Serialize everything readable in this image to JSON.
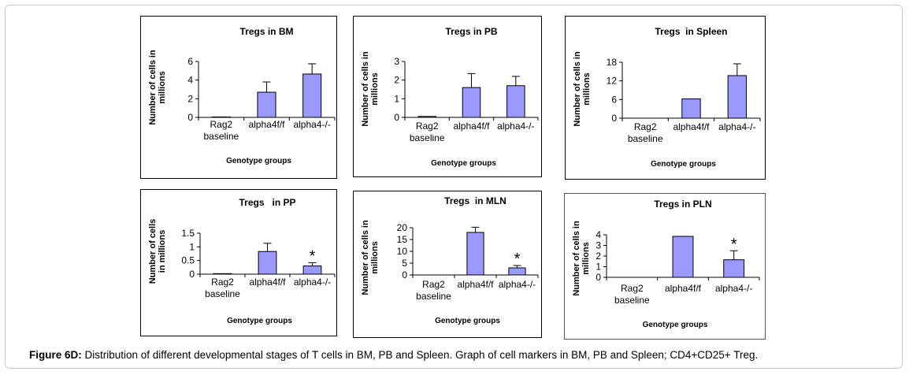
{
  "caption": {
    "label": "Figure 6D:",
    "text": " Distribution of different developmental stages of T cells in BM, PB and Spleen. Graph of cell markers in BM, PB and Spleen; CD4+CD25+ Treg."
  },
  "colors": {
    "bar_fill": "#9999ff",
    "bar_stroke": "#000000",
    "axis": "#000000",
    "background": "#ffffff"
  },
  "chart_data": [
    {
      "type": "bar",
      "title": "Tregs in BM",
      "xlabel": "Genotype groups",
      "ylabel": [
        "Number of cells in",
        "millions"
      ],
      "categories": [
        [
          "Rag2",
          "baseline"
        ],
        [
          "alpha4f/f"
        ],
        [
          "alpha4-/-"
        ]
      ],
      "values": [
        0.05,
        2.7,
        4.65
      ],
      "errors": [
        0,
        1.1,
        1.1
      ],
      "ylim": [
        0,
        6
      ],
      "yticks": [
        0,
        2,
        4,
        6
      ],
      "ytick_labels": [
        "0",
        "2",
        "4",
        "6"
      ],
      "significance": [
        "",
        "",
        ""
      ],
      "grid": false,
      "legend": "none"
    },
    {
      "type": "bar",
      "title": "Tregs in PB",
      "xlabel": "Genotype groups",
      "ylabel": [
        "Number of cells in",
        "millions"
      ],
      "categories": [
        [
          "Rag2",
          "baseline"
        ],
        [
          "alpha4f/f"
        ],
        [
          "alpha4-/-"
        ]
      ],
      "values": [
        0.05,
        1.6,
        1.7
      ],
      "errors": [
        0,
        0.75,
        0.5
      ],
      "ylim": [
        0,
        3
      ],
      "yticks": [
        0,
        1,
        2,
        3
      ],
      "ytick_labels": [
        "0",
        "1",
        "2",
        "3"
      ],
      "significance": [
        "",
        "",
        ""
      ],
      "grid": false,
      "legend": "none"
    },
    {
      "type": "bar",
      "title": "Tregs  in Spleen",
      "xlabel": "Genotype groups",
      "ylabel": [
        "Number of cells in",
        "millions"
      ],
      "categories": [
        [
          "Rag2",
          "baseline"
        ],
        [
          "alpha4f/f"
        ],
        [
          "alpha4-/-"
        ]
      ],
      "values": [
        0,
        6.2,
        13.7
      ],
      "errors": [
        0,
        0,
        3.8
      ],
      "ylim": [
        0,
        18
      ],
      "yticks": [
        0,
        6,
        12,
        18
      ],
      "ytick_labels": [
        "0",
        "6",
        "12",
        "18"
      ],
      "significance": [
        "",
        "",
        ""
      ],
      "grid": false,
      "legend": "none"
    },
    {
      "type": "bar",
      "title": "Tregs   in PP",
      "xlabel": "Genotype groups",
      "ylabel": [
        "Number of cells",
        "in millions"
      ],
      "categories": [
        [
          "Rag2",
          "baseline"
        ],
        [
          "alpha4f/f"
        ],
        [
          "alpha4-/-"
        ]
      ],
      "values": [
        0.02,
        0.83,
        0.3
      ],
      "errors": [
        0,
        0.3,
        0.12
      ],
      "ylim": [
        0,
        1.5
      ],
      "yticks": [
        0,
        0.5,
        1,
        1.5
      ],
      "ytick_labels": [
        "0",
        "0.5",
        "1",
        "1.5"
      ],
      "significance": [
        "",
        "",
        "*"
      ],
      "grid": false,
      "legend": "none"
    },
    {
      "type": "bar",
      "title": "Tregs  in MLN",
      "xlabel": "Genotype groups",
      "ylabel": [
        "Number of cells in",
        "millions"
      ],
      "categories": [
        [
          "Rag2",
          "baseline"
        ],
        [
          "alpha4f/f"
        ],
        [
          "alpha4-/-"
        ]
      ],
      "values": [
        0,
        18,
        3
      ],
      "errors": [
        0,
        2.2,
        1
      ],
      "ylim": [
        0,
        20
      ],
      "yticks": [
        0,
        5,
        10,
        15,
        20
      ],
      "ytick_labels": [
        "0",
        "5",
        "10",
        "15",
        "20"
      ],
      "significance": [
        "",
        "",
        "*"
      ],
      "grid": false,
      "legend": "none"
    },
    {
      "type": "bar",
      "title": "Tregs in PLN",
      "xlabel": "Genotype groups",
      "ylabel": [
        "Number of cells in",
        "millions"
      ],
      "categories": [
        [
          "Rag2",
          "baseline"
        ],
        [
          "alpha4f/f"
        ],
        [
          "alpha4-/-"
        ]
      ],
      "values": [
        0,
        3.85,
        1.65
      ],
      "errors": [
        0,
        0,
        0.85
      ],
      "ylim": [
        0,
        4
      ],
      "yticks": [
        0,
        1,
        2,
        3,
        4
      ],
      "ytick_labels": [
        "0",
        "1",
        "2",
        "3",
        "4"
      ],
      "significance": [
        "",
        "",
        "*"
      ],
      "grid": false,
      "legend": "none"
    }
  ]
}
